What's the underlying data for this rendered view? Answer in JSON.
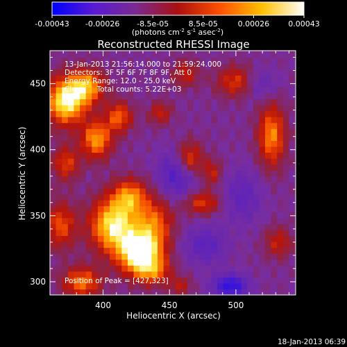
{
  "chart_data": {
    "type": "heatmap",
    "title": "Reconstructed RHESSI Image",
    "xlabel": "Heliocentric X (arcsec)",
    "ylabel": "Heliocentric Y (arcsec)",
    "xlim": [
      360,
      545
    ],
    "ylim": [
      290,
      475
    ],
    "x_ticks": [
      400,
      450,
      500
    ],
    "y_ticks": [
      300,
      350,
      400,
      450
    ],
    "colorbar": {
      "ticks": [
        "-0.00043",
        "-0.00026",
        "-8.5e-05",
        "8.5e-05",
        "0.00026",
        "0.00043"
      ],
      "units_main": "(photons cm",
      "units_sup1": "-2",
      "units_mid1": " s",
      "units_sup2": "-1",
      "units_mid2": " asec",
      "units_sup3": "-2",
      "units_end": ")",
      "colors": [
        "#0000ff",
        "#5a1bd0",
        "#7a2a90",
        "#aa1010",
        "#ff5000",
        "#ffc000",
        "#ffffff"
      ]
    },
    "annotations": [
      "13-Jan-2013 21:56:14.000 to 21:59:24.000",
      "Detectors: 3F 5F 6F 7F 8F 9F, Att 0",
      "Energy Range: 12.0 - 25.0 keV",
      "Clean     Total counts: 5.22E+03"
    ],
    "peak_label": "Position of Peak = [427,323]",
    "timestamp": "18-Jan-2013 06:39",
    "sources": [
      {
        "x": 428,
        "y": 322,
        "sx": 11,
        "sy": 11,
        "amp": 1.15
      },
      {
        "x": 408,
        "y": 343,
        "sx": 12,
        "sy": 14,
        "amp": 0.95
      },
      {
        "x": 420,
        "y": 365,
        "sx": 9,
        "sy": 9,
        "amp": 0.6
      },
      {
        "x": 438,
        "y": 345,
        "sx": 10,
        "sy": 13,
        "amp": 0.55
      },
      {
        "x": 372,
        "y": 437,
        "sx": 10,
        "sy": 12,
        "amp": 1.0
      },
      {
        "x": 388,
        "y": 448,
        "sx": 9,
        "sy": 9,
        "amp": 0.7
      },
      {
        "x": 395,
        "y": 408,
        "sx": 8,
        "sy": 10,
        "amp": 0.7
      },
      {
        "x": 412,
        "y": 425,
        "sx": 7,
        "sy": 8,
        "amp": 0.55
      },
      {
        "x": 372,
        "y": 390,
        "sx": 7,
        "sy": 9,
        "amp": 0.45
      },
      {
        "x": 368,
        "y": 343,
        "sx": 8,
        "sy": 12,
        "amp": 0.5
      },
      {
        "x": 384,
        "y": 300,
        "sx": 10,
        "sy": 8,
        "amp": 0.6
      },
      {
        "x": 438,
        "y": 308,
        "sx": 9,
        "sy": 7,
        "amp": 0.45
      },
      {
        "x": 465,
        "y": 393,
        "sx": 7,
        "sy": 9,
        "amp": 0.55
      },
      {
        "x": 475,
        "y": 360,
        "sx": 9,
        "sy": 6,
        "amp": 0.45
      },
      {
        "x": 482,
        "y": 383,
        "sx": 5,
        "sy": 7,
        "amp": 0.35
      },
      {
        "x": 527,
        "y": 411,
        "sx": 7,
        "sy": 16,
        "amp": 0.65
      },
      {
        "x": 500,
        "y": 452,
        "sx": 10,
        "sy": 8,
        "amp": 0.45
      },
      {
        "x": 462,
        "y": 458,
        "sx": 7,
        "sy": 7,
        "amp": 0.35
      },
      {
        "x": 532,
        "y": 330,
        "sx": 7,
        "sy": 8,
        "amp": 0.35
      },
      {
        "x": 443,
        "y": 428,
        "sx": 6,
        "sy": 6,
        "amp": 0.35
      },
      {
        "x": 458,
        "y": 297,
        "sx": 6,
        "sy": 5,
        "amp": 0.3
      },
      {
        "x": 456,
        "y": 382,
        "sx": 10,
        "sy": 12,
        "amp": -0.45
      },
      {
        "x": 477,
        "y": 328,
        "sx": 11,
        "sy": 10,
        "amp": -0.35
      },
      {
        "x": 496,
        "y": 297,
        "sx": 9,
        "sy": 6,
        "amp": -0.7
      },
      {
        "x": 505,
        "y": 365,
        "sx": 10,
        "sy": 14,
        "amp": -0.3
      },
      {
        "x": 518,
        "y": 450,
        "sx": 9,
        "sy": 8,
        "amp": -0.25
      }
    ]
  }
}
